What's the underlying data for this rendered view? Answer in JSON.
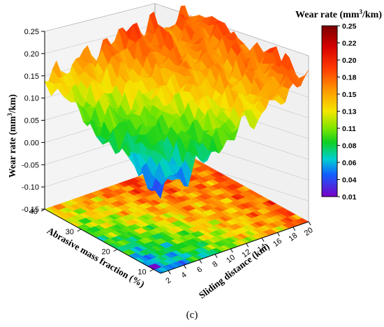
{
  "chart_data": {
    "type": "surface3d",
    "zlabel_pre": "Wear rate (mm",
    "zlabel_sup": "3",
    "zlabel_post": "/km)",
    "xlabel": "Sliding distance (km)",
    "ylabel": "Abrasive mass fraction (%)",
    "x_ticks": [
      "2",
      "4",
      "6",
      "8",
      "10",
      "12",
      "14",
      "16",
      "18",
      "20"
    ],
    "y_ticks": [
      "10",
      "20",
      "30",
      "40"
    ],
    "z_ticks": [
      "0.25",
      "0.20",
      "0.15",
      "0.10",
      "0.05",
      "0.00",
      "-0.05",
      "-0.10",
      "-0.15"
    ],
    "zlim": [
      -0.15,
      0.25
    ],
    "xlim": [
      1,
      20
    ],
    "ylim": [
      8,
      40
    ],
    "surface_profile": {
      "sliding_distance_km": [
        1,
        4,
        8,
        12,
        16,
        20
      ],
      "wear_rate_front_edge": [
        0.03,
        0.05,
        0.08,
        0.12,
        0.15,
        0.18
      ],
      "wear_rate_back_edge": [
        0.14,
        0.15,
        0.17,
        0.19,
        0.17,
        0.18
      ]
    },
    "colorbar": {
      "title_pre": "Wear rate (mm",
      "title_sup": "3",
      "title_post": "/km)",
      "ticks": [
        "0.25",
        "0.22",
        "0.20",
        "0.18",
        "0.15",
        "0.13",
        "0.11",
        "0.08",
        "0.06",
        "0.04",
        "0.01"
      ],
      "range": [
        0.01,
        0.25
      ]
    },
    "panel_label": "(c)",
    "grid": true
  }
}
